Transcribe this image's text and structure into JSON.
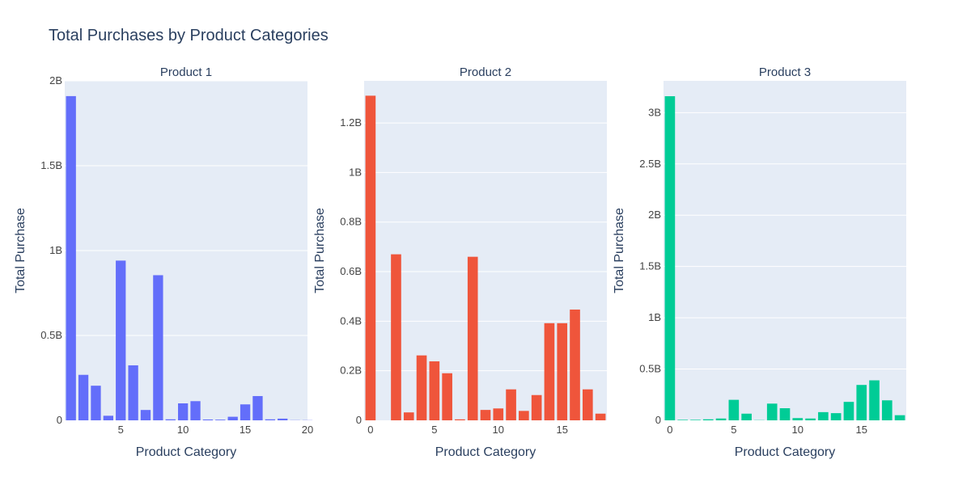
{
  "figure": {
    "title": "Total Purchases by Product Categories"
  },
  "chart_data": [
    {
      "type": "bar",
      "title": "Product 1",
      "xlabel": "Product Category",
      "ylabel": "Total Purchase",
      "color": "#636efa",
      "xlim": [
        0.5,
        20
      ],
      "ylim": [
        0,
        2000000000
      ],
      "x": [
        1,
        2,
        3,
        4,
        5,
        6,
        7,
        8,
        9,
        10,
        11,
        12,
        13,
        14,
        15,
        16,
        17,
        18,
        19,
        20
      ],
      "values": [
        1910000000,
        268000000,
        204000000,
        27000000,
        941000000,
        324000000,
        61000000,
        855000000,
        6000000,
        100000000,
        113000000,
        5000000,
        4000000,
        21000000,
        94000000,
        143000000,
        6000000,
        10000000,
        1000000,
        1000000
      ],
      "xticks": [
        5,
        10,
        15,
        20
      ],
      "xtick_labels": [
        "5",
        "10",
        "15",
        "20"
      ],
      "yticks": [
        0,
        500000000,
        1000000000,
        1500000000,
        2000000000
      ],
      "ytick_labels": [
        "0",
        "0.5B",
        "1B",
        "1.5B",
        "2B"
      ],
      "grid": true
    },
    {
      "type": "bar",
      "title": "Product 2",
      "xlabel": "Product Category",
      "ylabel": "Total Purchase",
      "color": "#ef553b",
      "xlim": [
        -0.5,
        18.5
      ],
      "ylim": [
        0,
        1370000000
      ],
      "x": [
        0,
        1,
        2,
        3,
        4,
        5,
        6,
        7,
        8,
        9,
        10,
        11,
        12,
        13,
        14,
        15,
        16,
        17,
        18
      ],
      "values": [
        1310000000,
        0,
        670000000,
        32000000,
        262000000,
        238000000,
        190000000,
        4000000,
        660000000,
        42000000,
        48000000,
        125000000,
        38000000,
        102000000,
        392000000,
        392000000,
        447000000,
        125000000,
        27000000
      ],
      "xticks": [
        0,
        5,
        10,
        15
      ],
      "xtick_labels": [
        "0",
        "5",
        "10",
        "15"
      ],
      "yticks": [
        0,
        200000000,
        400000000,
        600000000,
        800000000,
        1000000000,
        1200000000
      ],
      "ytick_labels": [
        "0",
        "0.2B",
        "0.4B",
        "0.6B",
        "0.8B",
        "1B",
        "1.2B"
      ],
      "grid": true
    },
    {
      "type": "bar",
      "title": "Product 3",
      "xlabel": "Product Category",
      "ylabel": "Total Purchase",
      "color": "#00cc96",
      "xlim": [
        -0.5,
        18.5
      ],
      "ylim": [
        0,
        3310000000
      ],
      "x": [
        0,
        1,
        2,
        3,
        4,
        5,
        6,
        7,
        8,
        9,
        10,
        11,
        12,
        13,
        14,
        15,
        16,
        17,
        18
      ],
      "values": [
        3160000000,
        5000000,
        5000000,
        10000000,
        18000000,
        200000000,
        65000000,
        2000000,
        163000000,
        118000000,
        22000000,
        18000000,
        80000000,
        70000000,
        180000000,
        345000000,
        390000000,
        195000000,
        50000000
      ],
      "xticks": [
        0,
        5,
        10,
        15
      ],
      "xtick_labels": [
        "0",
        "5",
        "10",
        "15"
      ],
      "yticks": [
        0,
        500000000,
        1000000000,
        1500000000,
        2000000000,
        2500000000,
        3000000000
      ],
      "ytick_labels": [
        "0",
        "0.5B",
        "1B",
        "1.5B",
        "2B",
        "2.5B",
        "3B"
      ],
      "grid": true
    }
  ]
}
